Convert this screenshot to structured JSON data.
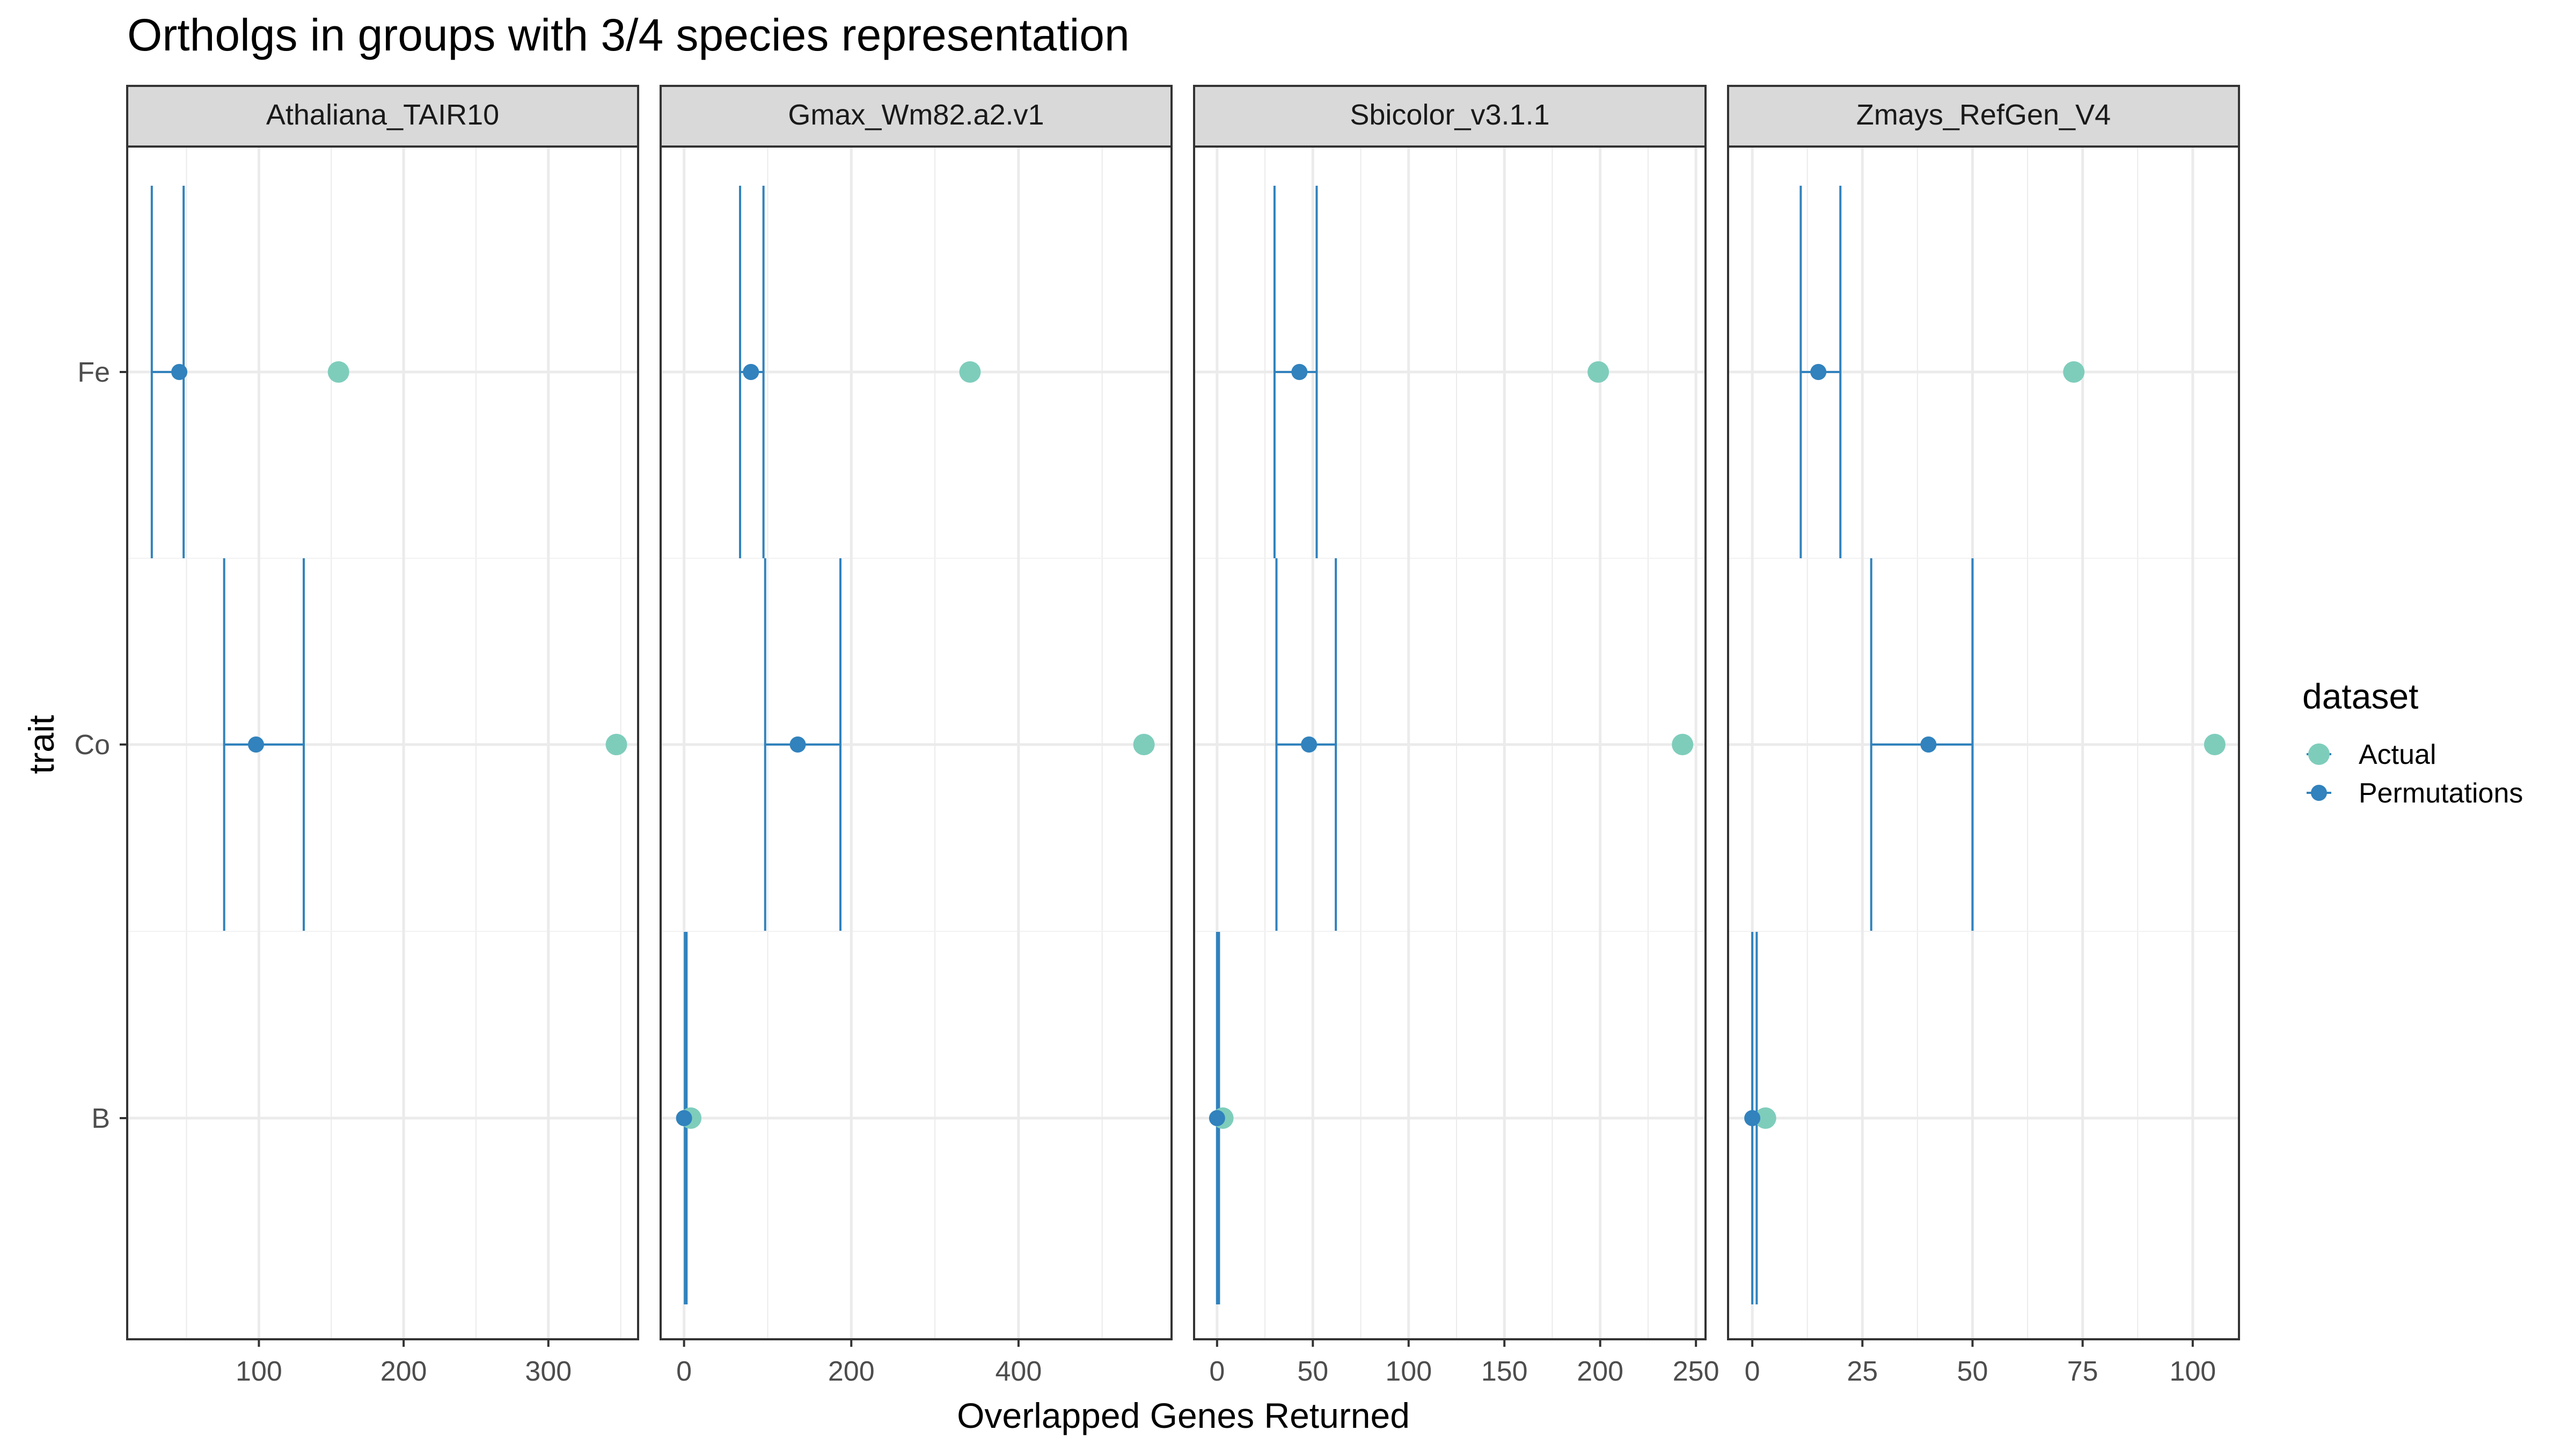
{
  "chart_data": {
    "type": "scatter",
    "title": "Ortholgs in groups with 3/4 species representation",
    "xlabel": "Overlapped Genes Returned",
    "ylabel": "trait",
    "categories": [
      "Fe",
      "Co",
      "B"
    ],
    "legend": {
      "title": "dataset",
      "placement": "right",
      "entries": [
        {
          "name": "Actual",
          "color": "#7ECDBB"
        },
        {
          "name": "Permutations",
          "color": "#3182BD"
        }
      ]
    },
    "colors": {
      "actual": "#7ECDBB",
      "permutations": "#3182BD",
      "strip_fill": "#D9D9D9",
      "grid": "#EBEBEB"
    },
    "grid": true,
    "facets": [
      {
        "name": "Athaliana_TAIR10",
        "xlim": [
          9,
          362
        ],
        "xticks": [
          100,
          200,
          300
        ],
        "actual": {
          "Fe": 155,
          "Co": 347,
          "B": null
        },
        "permutations": {
          "Fe": {
            "mean": 45,
            "low": 26,
            "high": 48
          },
          "Co": {
            "mean": 98,
            "low": 76,
            "high": 131
          },
          "B": null
        }
      },
      {
        "name": "Gmax_Wm82.a2.v1",
        "xlim": [
          -28,
          583
        ],
        "xticks": [
          0,
          200,
          400
        ],
        "actual": {
          "Fe": 342,
          "Co": 550,
          "B": 8
        },
        "permutations": {
          "Fe": {
            "mean": 80,
            "low": 67,
            "high": 95
          },
          "Co": {
            "mean": 136,
            "low": 97,
            "high": 187
          },
          "B": {
            "mean": 0,
            "low": 1,
            "high": 3
          }
        }
      },
      {
        "name": "Sbicolor_v3.1.1",
        "xlim": [
          -12,
          255
        ],
        "xticks": [
          0,
          50,
          100,
          150,
          200,
          250
        ],
        "xticks_minor": [
          25,
          75,
          125,
          175,
          225
        ],
        "actual": {
          "Fe": 199,
          "Co": 243,
          "B": 3
        },
        "permutations": {
          "Fe": {
            "mean": 43,
            "low": 30,
            "high": 52
          },
          "Co": {
            "mean": 48,
            "low": 31,
            "high": 62
          },
          "B": {
            "mean": 0,
            "low": 0,
            "high": 1
          }
        }
      },
      {
        "name": "Zmays_RefGen_V4",
        "xlim": [
          -5.5,
          110.5
        ],
        "xticks": [
          0,
          25,
          50,
          75,
          100
        ],
        "actual": {
          "Fe": 73,
          "Co": 105,
          "B": 3
        },
        "permutations": {
          "Fe": {
            "mean": 15,
            "low": 11,
            "high": 20
          },
          "Co": {
            "mean": 40,
            "low": 27,
            "high": 50
          },
          "B": {
            "mean": 0,
            "low": 0,
            "high": 1
          }
        }
      }
    ]
  }
}
